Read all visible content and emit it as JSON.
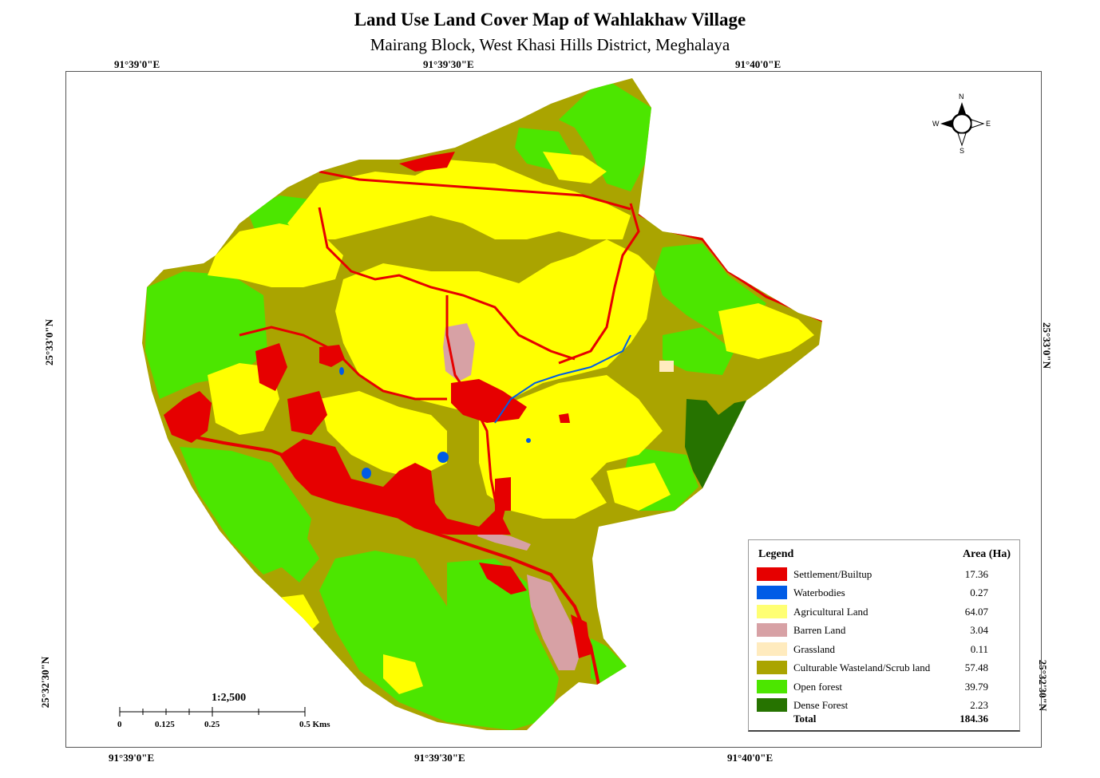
{
  "map": {
    "title": "Land Use Land Cover Map of Wahlakhaw Village",
    "subtitle": "Mairang Block, West Khasi Hills District, Meghalaya",
    "coords": {
      "top": [
        "91°39'0\"E",
        "91°39'30\"E",
        "91°40'0\"E"
      ],
      "bottom": [
        "91°39'0\"E",
        "91°39'30\"E",
        "91°40'0\"E"
      ],
      "left": [
        "25°33'0\"N",
        "25°32'30\"N"
      ],
      "right": [
        "25°33'0\"N",
        "25°32'30\"N"
      ]
    }
  },
  "legend": {
    "title": "Legend",
    "area_header": "Area (Ha)",
    "items": [
      {
        "label": "Settlement/Builtup",
        "area": "17.36",
        "color": "#e60000"
      },
      {
        "label": "Waterbodies",
        "area": "0.27",
        "color": "#005ce6"
      },
      {
        "label": "Agricultural Land",
        "area": "64.07",
        "color": "#ffff73"
      },
      {
        "label": "Barren Land",
        "area": "3.04",
        "color": "#d7a1a5"
      },
      {
        "label": "Grassland",
        "area": "0.11",
        "color": "#ffebbe"
      },
      {
        "label": "Culturable Wasteland/Scrub land",
        "area": "57.48",
        "color": "#aaa400"
      },
      {
        "label": "Open forest",
        "area": "39.79",
        "color": "#4ce600"
      },
      {
        "label": "Dense Forest",
        "area": "2.23",
        "color": "#267300"
      }
    ],
    "total_label": "Total",
    "total_value": "184.36"
  },
  "scale": {
    "ratio": "1:2,500",
    "ticks": [
      "0",
      "0.125",
      "0.25",
      "0.5 Kms"
    ]
  },
  "compass": {
    "n": "N",
    "s": "S",
    "e": "E",
    "w": "W"
  },
  "colors": {
    "settlement": "#e60000",
    "water": "#005ce6",
    "agricultural": "#ffff00",
    "barren": "#d7a1a5",
    "grassland": "#ffebbe",
    "scrub": "#aaa400",
    "open_forest": "#4ce600",
    "dense_forest": "#267300"
  }
}
